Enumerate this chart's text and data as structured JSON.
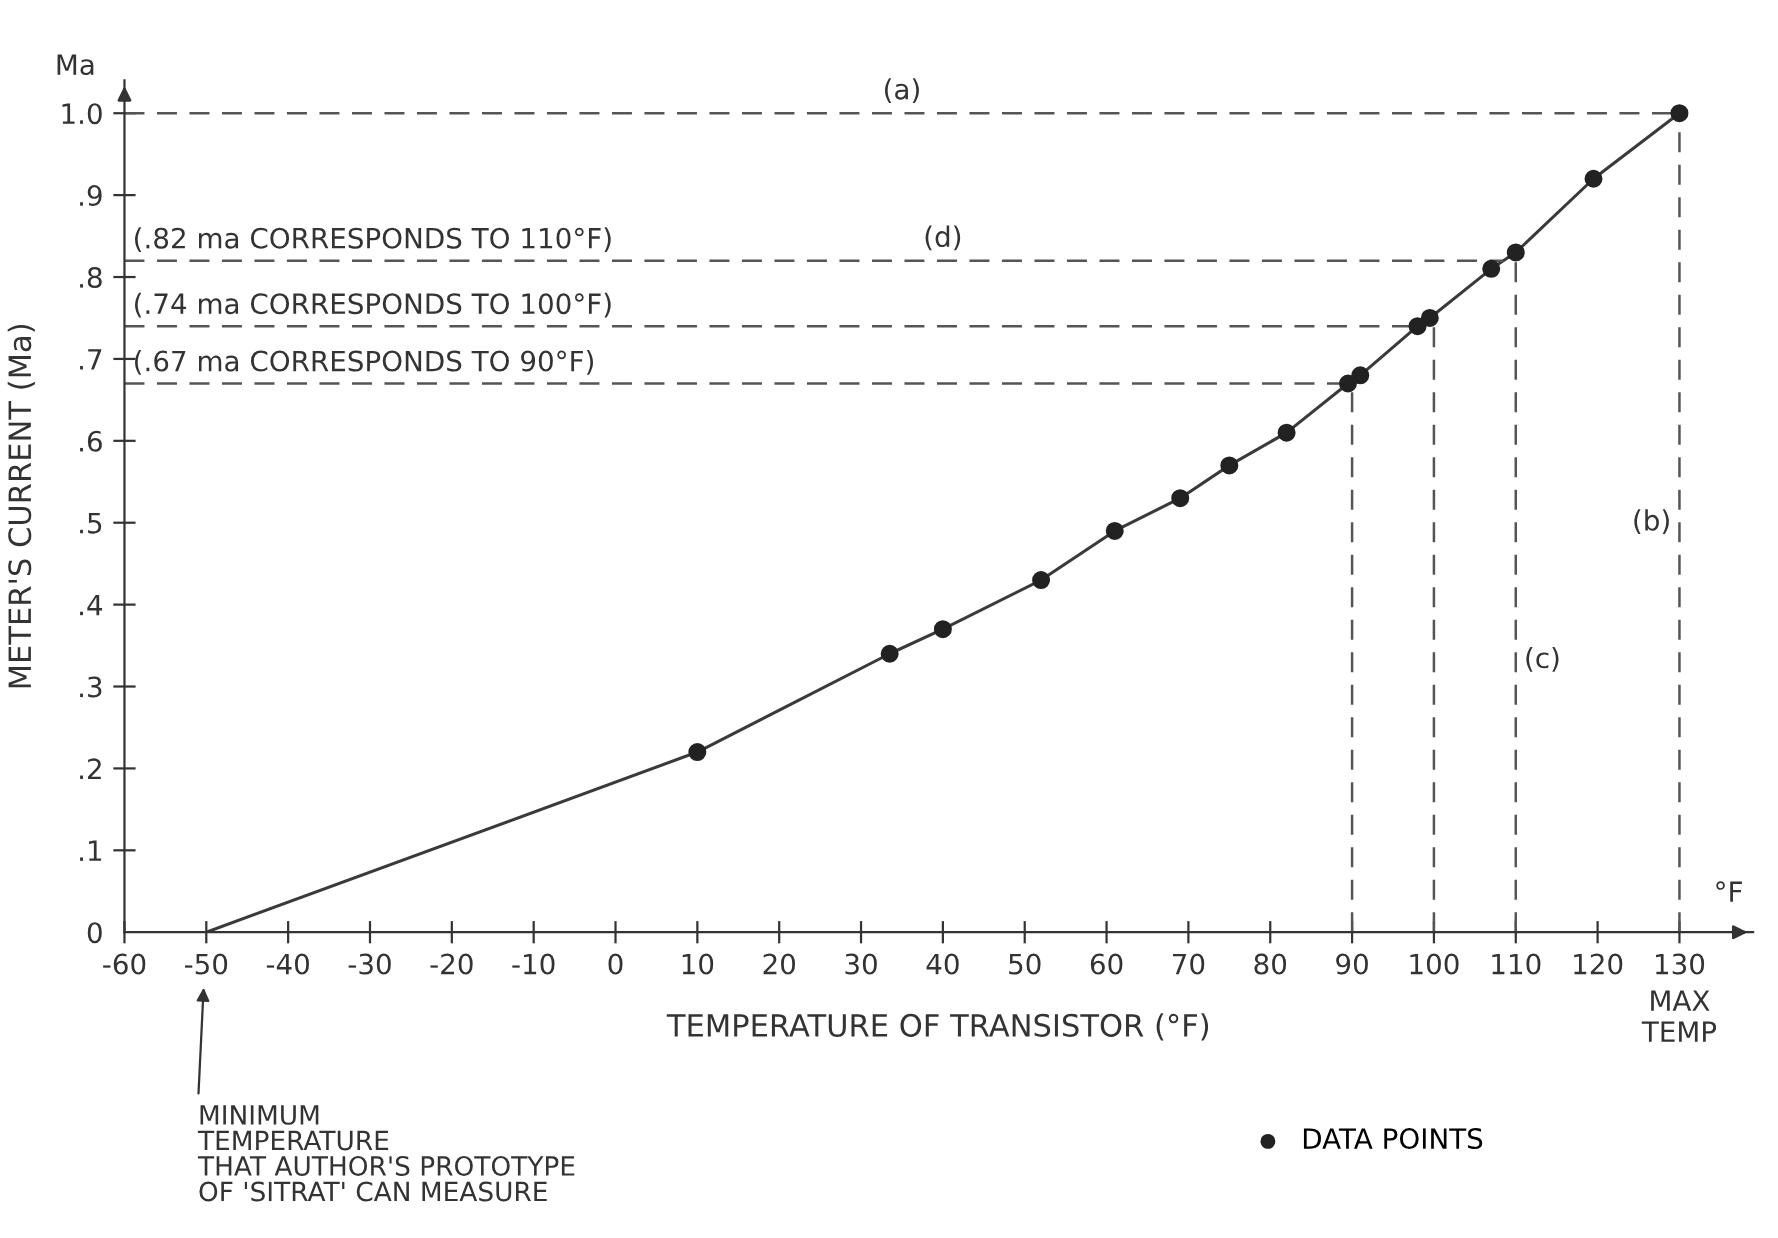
{
  "chart_data": {
    "type": "line",
    "xlabel": "TEMPERATURE OF TRANSISTOR (°F)",
    "ylabel": "METER'S CURRENT (Ma)",
    "xlim": [
      -60,
      139
    ],
    "ylim": [
      0,
      1.04
    ],
    "xticks": [
      -60,
      -50,
      -40,
      -30,
      -20,
      -10,
      0,
      10,
      20,
      30,
      40,
      50,
      60,
      70,
      80,
      90,
      100,
      110,
      120,
      130
    ],
    "yticks": [
      0,
      {
        "value": 0.1,
        "label": ".1"
      },
      {
        "value": 0.2,
        "label": ".2"
      },
      {
        "value": 0.3,
        "label": ".3"
      },
      {
        "value": 0.4,
        "label": ".4"
      },
      {
        "value": 0.5,
        "label": ".5"
      },
      {
        "value": 0.6,
        "label": ".6"
      },
      {
        "value": 0.7,
        "label": ".7"
      },
      {
        "value": 0.8,
        "label": ".8"
      },
      {
        "value": 0.9,
        "label": ".9"
      },
      {
        "value": 1.0,
        "label": "1.0"
      }
    ],
    "series": [
      {
        "color": "#3a3a3a",
        "x": [
          -50,
          10,
          33.5,
          40,
          52,
          61,
          69,
          75,
          82,
          89.5,
          91,
          98,
          99.5,
          107,
          110,
          119.5,
          130
        ],
        "values": [
          0,
          0.22,
          0.34,
          0.37,
          0.43,
          0.49,
          0.53,
          0.57,
          0.61,
          0.67,
          0.68,
          0.74,
          0.75,
          0.81,
          0.83,
          0.92,
          1.0
        ],
        "marker": "none"
      },
      {
        "type": "scatter",
        "name": "DATA POINTS",
        "color": "#222222",
        "x": [
          10,
          33.5,
          40,
          52,
          61,
          69,
          75,
          82,
          89.5,
          91,
          98,
          99.5,
          107,
          110,
          119.5,
          130
        ],
        "values": [
          0.22,
          0.34,
          0.37,
          0.43,
          0.49,
          0.53,
          0.57,
          0.61,
          0.67,
          0.68,
          0.74,
          0.75,
          0.81,
          0.83,
          0.92,
          1.0
        ],
        "marker": "circle"
      }
    ],
    "ref_lines": [
      {
        "axis": "y",
        "value": 1.0,
        "label": "(a)",
        "line_style": "dashed",
        "color": "#555555"
      },
      {
        "axis": "y",
        "value": 0.82,
        "label": "(.82 ma CORRESPONDS TO 110°F)",
        "line_style": "dashed",
        "color": "#555555"
      },
      {
        "axis": "y",
        "value": 0.74,
        "label": "(.74 ma CORRESPONDS TO 100°F)",
        "line_style": "dashed",
        "color": "#555555"
      },
      {
        "axis": "y",
        "value": 0.67,
        "label": "(.67 ma CORRESPONDS TO 90°F)",
        "line_style": "dashed",
        "color": "#555555"
      },
      {
        "axis": "x",
        "value": 90,
        "line_style": "dashed",
        "color": "#555555"
      },
      {
        "axis": "x",
        "value": 100,
        "line_style": "dashed",
        "color": "#555555"
      },
      {
        "axis": "x",
        "value": 110,
        "label": "(c)",
        "line_style": "dashed",
        "color": "#555555"
      },
      {
        "axis": "x",
        "value": 130,
        "label": "(b)",
        "line_style": "dashed",
        "color": "#555555"
      }
    ],
    "annotations": [
      {
        "text": "(d)",
        "x": 40,
        "y": 0.82
      },
      "Ma",
      "°F",
      "MAX\nTEMP",
      "MINIMUM\nTEMPERATURE\nTHAT AUTHOR'S PROTOTYPE\nOF 'SITRAT' CAN MEASURE"
    ],
    "legend": "bottom right",
    "grid": false
  }
}
